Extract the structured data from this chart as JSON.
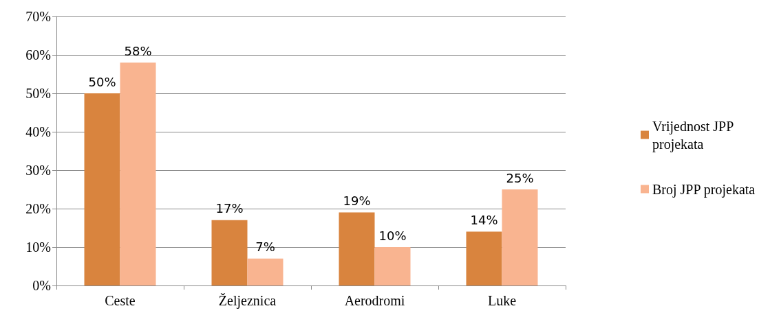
{
  "chart_data": {
    "type": "bar",
    "categories": [
      "Ceste",
      "Željeznica",
      "Aerodromi",
      "Luke"
    ],
    "series": [
      {
        "name": "Vrijednost JPP projekata",
        "color": "#d9843e",
        "values": [
          50,
          17,
          19,
          14
        ],
        "value_labels": [
          "50%",
          "17%",
          "19%",
          "14%"
        ]
      },
      {
        "name": "Broj JPP projekata",
        "color": "#f9b490",
        "values": [
          58,
          7,
          10,
          25
        ],
        "value_labels": [
          "58%",
          "7%",
          "10%",
          "25%"
        ]
      }
    ],
    "ylim": [
      0,
      70
    ],
    "yticks": [
      {
        "value": 0,
        "label": "0%"
      },
      {
        "value": 10,
        "label": "10%"
      },
      {
        "value": 20,
        "label": "20%"
      },
      {
        "value": 30,
        "label": "30%"
      },
      {
        "value": 40,
        "label": "40%"
      },
      {
        "value": 50,
        "label": "50%"
      },
      {
        "value": 60,
        "label": "60%"
      },
      {
        "value": 70,
        "label": "70%"
      }
    ],
    "grid": "y",
    "legend": "right"
  }
}
